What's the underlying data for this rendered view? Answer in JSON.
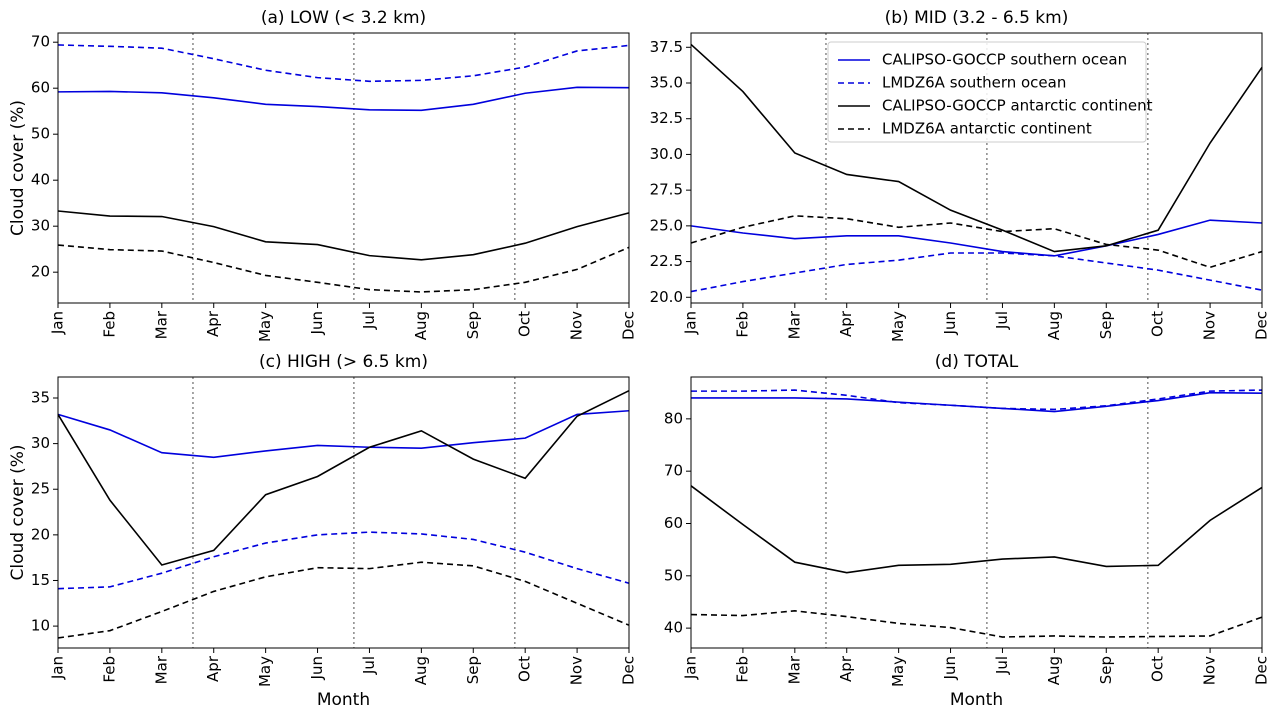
{
  "chart_data": [
    {
      "type": "line",
      "title": "(a) LOW (< 3.2 km)",
      "y_label": "Cloud cover (%)",
      "categories": [
        "Jan",
        "Feb",
        "Mar",
        "Apr",
        "May",
        "Jun",
        "Jul",
        "Aug",
        "Sep",
        "Oct",
        "Nov",
        "Dec"
      ],
      "series": [
        {
          "color": "#0000dd",
          "style": "solid",
          "values": [
            59.2,
            59.3,
            59.0,
            57.9,
            56.5,
            56.0,
            55.3,
            55.2,
            56.5,
            58.9,
            60.2,
            60.1
          ]
        },
        {
          "color": "#0000dd",
          "style": "dashed",
          "values": [
            69.4,
            69.1,
            68.7,
            66.4,
            63.9,
            62.3,
            61.5,
            61.7,
            62.7,
            64.6,
            68.1,
            69.3
          ]
        },
        {
          "color": "#000000",
          "style": "solid",
          "values": [
            33.3,
            32.2,
            32.1,
            29.9,
            26.6,
            26.0,
            23.6,
            22.7,
            23.8,
            26.3,
            29.9,
            32.9
          ]
        },
        {
          "color": "#000000",
          "style": "dashed",
          "values": [
            25.9,
            24.9,
            24.6,
            22.1,
            19.3,
            17.8,
            16.2,
            15.7,
            16.2,
            17.8,
            20.6,
            25.4
          ]
        }
      ],
      "ylim": [
        13.3,
        72.0
      ],
      "yticks": [
        20,
        30,
        40,
        50,
        60,
        70
      ],
      "vlines": [
        2.6,
        5.7,
        8.8
      ]
    },
    {
      "type": "line",
      "title": "(b) MID (3.2 - 6.5 km)",
      "legend": "upper center",
      "categories": [
        "Jan",
        "Feb",
        "Mar",
        "Apr",
        "May",
        "Jun",
        "Jul",
        "Aug",
        "Sep",
        "Oct",
        "Nov",
        "Dec"
      ],
      "series": [
        {
          "name": "CALIPSO-GOCCP southern ocean",
          "color": "#0000dd",
          "style": "solid",
          "values": [
            25.0,
            24.5,
            24.1,
            24.3,
            24.3,
            23.8,
            23.2,
            22.9,
            23.6,
            24.4,
            25.4,
            25.2
          ]
        },
        {
          "name": "LMDZ6A southern ocean",
          "color": "#0000dd",
          "style": "dashed",
          "values": [
            20.4,
            21.1,
            21.7,
            22.3,
            22.6,
            23.1,
            23.1,
            22.9,
            22.4,
            21.9,
            21.2,
            20.5
          ]
        },
        {
          "name": "CALIPSO-GOCCP antarctic continent",
          "color": "#000000",
          "style": "solid",
          "values": [
            37.7,
            34.4,
            30.1,
            28.6,
            28.1,
            26.1,
            24.7,
            23.2,
            23.6,
            24.7,
            30.8,
            36.1
          ]
        },
        {
          "name": "LMDZ6A antarctic continent",
          "color": "#000000",
          "style": "dashed",
          "values": [
            23.8,
            24.9,
            25.7,
            25.5,
            24.9,
            25.2,
            24.6,
            24.8,
            23.7,
            23.3,
            22.1,
            23.2
          ]
        }
      ],
      "ylim": [
        19.6,
        38.5
      ],
      "yticks": [
        {
          "value": 20,
          "label": "20.0"
        },
        22.5,
        {
          "value": 25,
          "label": "25.0"
        },
        27.5,
        {
          "value": 30,
          "label": "30.0"
        },
        32.5,
        {
          "value": 35,
          "label": "35.0"
        },
        37.5
      ],
      "vlines": [
        2.6,
        5.7,
        8.8
      ]
    },
    {
      "type": "line",
      "title": "(c) HIGH (> 6.5 km)",
      "y_label": "Cloud cover (%)",
      "x_label": "Month",
      "categories": [
        "Jan",
        "Feb",
        "Mar",
        "Apr",
        "May",
        "Jun",
        "Jul",
        "Aug",
        "Sep",
        "Oct",
        "Nov",
        "Dec"
      ],
      "series": [
        {
          "color": "#0000dd",
          "style": "solid",
          "values": [
            33.2,
            31.5,
            29.0,
            28.5,
            29.2,
            29.8,
            29.6,
            29.5,
            30.1,
            30.6,
            33.2,
            33.6
          ]
        },
        {
          "color": "#0000dd",
          "style": "dashed",
          "values": [
            14.1,
            14.3,
            15.8,
            17.6,
            19.1,
            20.0,
            20.3,
            20.1,
            19.5,
            18.1,
            16.3,
            14.7
          ]
        },
        {
          "color": "#000000",
          "style": "solid",
          "values": [
            33.2,
            23.8,
            16.7,
            18.3,
            24.4,
            26.4,
            29.6,
            31.4,
            28.3,
            26.2,
            33.0,
            35.8
          ]
        },
        {
          "color": "#000000",
          "style": "dashed",
          "values": [
            8.7,
            9.5,
            11.6,
            13.8,
            15.4,
            16.4,
            16.3,
            17.0,
            16.6,
            14.9,
            12.5,
            10.1
          ]
        }
      ],
      "ylim": [
        7.6,
        37.3
      ],
      "yticks": [
        10,
        15,
        20,
        25,
        30,
        35
      ],
      "vlines": [
        2.6,
        5.7,
        8.8
      ]
    },
    {
      "type": "line",
      "title": "(d) TOTAL",
      "x_label": "Month",
      "categories": [
        "Jan",
        "Feb",
        "Mar",
        "Apr",
        "May",
        "Jun",
        "Jul",
        "Aug",
        "Sep",
        "Oct",
        "Nov",
        "Dec"
      ],
      "series": [
        {
          "color": "#0000dd",
          "style": "solid",
          "values": [
            84.0,
            84.0,
            84.0,
            83.8,
            83.2,
            82.6,
            82.0,
            81.4,
            82.4,
            83.5,
            85.0,
            84.9
          ]
        },
        {
          "color": "#0000dd",
          "style": "dashed",
          "values": [
            85.3,
            85.3,
            85.5,
            84.5,
            83.1,
            82.6,
            82.0,
            81.8,
            82.5,
            83.8,
            85.3,
            85.5
          ]
        },
        {
          "color": "#000000",
          "style": "solid",
          "values": [
            67.2,
            59.8,
            52.6,
            50.6,
            52.0,
            52.2,
            53.2,
            53.6,
            51.8,
            52.0,
            60.6,
            66.9
          ]
        },
        {
          "color": "#000000",
          "style": "dashed",
          "values": [
            42.6,
            42.4,
            43.3,
            42.2,
            40.9,
            40.1,
            38.3,
            38.5,
            38.3,
            38.4,
            38.5,
            42.1
          ]
        }
      ],
      "ylim": [
        36.2,
        88.0
      ],
      "yticks": [
        40,
        50,
        60,
        70,
        80
      ],
      "vlines": [
        2.6,
        5.7,
        8.8
      ]
    }
  ]
}
